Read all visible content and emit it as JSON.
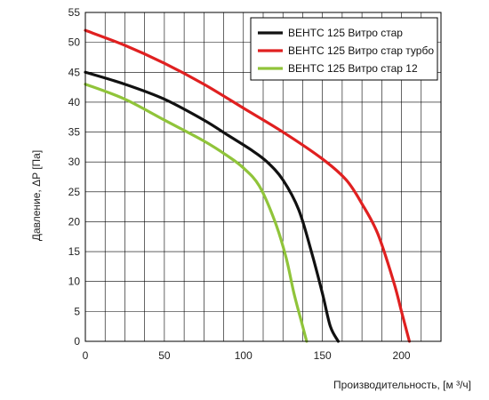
{
  "chart_data": {
    "type": "line",
    "xlabel": "Производительность, [м ³/ч]",
    "ylabel": "Давление, ΔP [Па]",
    "xlim": [
      0,
      225
    ],
    "ylim": [
      0,
      55
    ],
    "xticks": [
      0,
      50,
      100,
      150,
      200
    ],
    "yticks": [
      0,
      5,
      10,
      15,
      20,
      25,
      30,
      35,
      40,
      45,
      50,
      55
    ],
    "grid": true,
    "legend_position": "top-right",
    "series": [
      {
        "name": "ВЕНТС 125 Витро стар",
        "color": "#111111",
        "points": [
          [
            0,
            45
          ],
          [
            25,
            43
          ],
          [
            50,
            40.5
          ],
          [
            75,
            37
          ],
          [
            90,
            34.5
          ],
          [
            105,
            32
          ],
          [
            115,
            30
          ],
          [
            125,
            27
          ],
          [
            135,
            22
          ],
          [
            143,
            15
          ],
          [
            150,
            8
          ],
          [
            155,
            2.5
          ],
          [
            160,
            0
          ]
        ]
      },
      {
        "name": "ВЕНТС 125 Витро стар турбо",
        "color": "#e02020",
        "points": [
          [
            0,
            52
          ],
          [
            25,
            49.5
          ],
          [
            50,
            46.5
          ],
          [
            75,
            43
          ],
          [
            100,
            39
          ],
          [
            125,
            35
          ],
          [
            150,
            30.5
          ],
          [
            165,
            27
          ],
          [
            175,
            23
          ],
          [
            185,
            18
          ],
          [
            195,
            10
          ],
          [
            200,
            5
          ],
          [
            205,
            0
          ]
        ]
      },
      {
        "name": "ВЕНТС 125 Витро стар 12",
        "color": "#90c43a",
        "points": [
          [
            0,
            43
          ],
          [
            25,
            40.5
          ],
          [
            50,
            37
          ],
          [
            75,
            33.5
          ],
          [
            90,
            31
          ],
          [
            100,
            29
          ],
          [
            110,
            26
          ],
          [
            120,
            20
          ],
          [
            127,
            14
          ],
          [
            132,
            8
          ],
          [
            137,
            3
          ],
          [
            140,
            0
          ]
        ]
      }
    ]
  }
}
